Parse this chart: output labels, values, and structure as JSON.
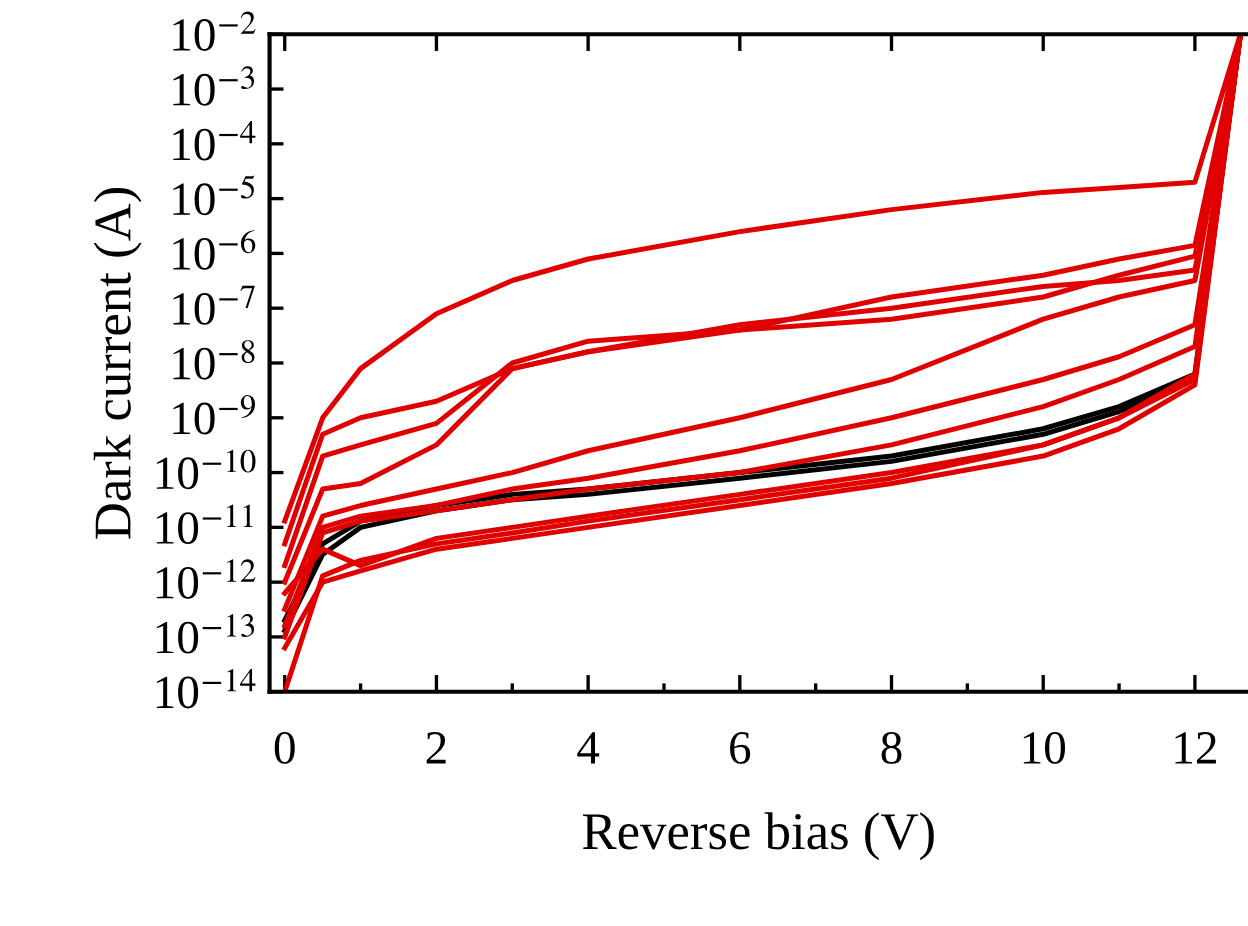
{
  "chart_data": {
    "type": "line",
    "xlabel": "Reverse bias (V)",
    "ylabel": "Dark current (A)",
    "log": "y",
    "xlim": [
      -0.2,
      12.7
    ],
    "ylim": [
      1e-14,
      0.01
    ],
    "xticks": [
      0,
      {
        "value": 1,
        "label": null
      },
      2,
      {
        "value": 3,
        "label": null
      },
      4,
      {
        "value": 5,
        "label": null
      },
      6,
      {
        "value": 7,
        "label": null
      },
      8,
      {
        "value": 9,
        "label": null
      },
      10,
      {
        "value": 11,
        "label": null
      },
      12
    ],
    "yticks": [
      {
        "value": 1e-14,
        "label": "10$^{−14}$"
      },
      {
        "value": 1e-13,
        "label": "10$^{−13}$"
      },
      {
        "value": 1e-12,
        "label": "10$^{−12}$"
      },
      {
        "value": 1e-11,
        "label": "10$^{−11}$"
      },
      {
        "value": 1e-10,
        "label": "10$^{−10}$"
      },
      {
        "value": 1e-09,
        "label": "10$^{−9}$"
      },
      {
        "value": 1e-08,
        "label": "10$^{−8}$"
      },
      {
        "value": 1e-07,
        "label": "10$^{−7}$"
      },
      {
        "value": 1e-06,
        "label": "10$^{−6}$"
      },
      {
        "value": 1e-05,
        "label": "10$^{−5}$"
      },
      {
        "value": 0.0001,
        "label": "10$^{−4}$"
      },
      {
        "value": 0.001,
        "label": "10$^{−3}$"
      },
      {
        "value": 0.01,
        "label": "10$^{−2}$"
      }
    ],
    "grid": false,
    "marker": "none",
    "line_style": "solid",
    "x": [
      0,
      0.5,
      1,
      2,
      3,
      4,
      6,
      8,
      10,
      11,
      12,
      12.6
    ],
    "series": [
      {
        "color": "#000000",
        "values": [
          2e-13,
          5e-12,
          1.3e-11,
          2.5e-11,
          4e-11,
          5e-11,
          1e-10,
          2e-10,
          6.3e-10,
          1.6e-09,
          6.3e-09,
          0.01
        ]
      },
      {
        "color": "#000000",
        "values": [
          1.3e-13,
          3.2e-12,
          1e-11,
          2e-11,
          3.2e-11,
          4e-11,
          7.9e-11,
          1.6e-10,
          5e-10,
          1.3e-09,
          5e-09,
          0.01
        ]
      },
      {
        "color": "#e00000",
        "values": [
          1.3e-11,
          1e-09,
          7.9e-09,
          7.9e-08,
          3.2e-07,
          7.9e-07,
          2.5e-06,
          6.3e-06,
          1.3e-05,
          1.6e-05,
          2e-05,
          0.01
        ]
      },
      {
        "color": "#e00000",
        "values": [
          5e-12,
          5e-10,
          1e-09,
          2e-09,
          7.9e-09,
          1.6e-08,
          4e-08,
          1.6e-07,
          4e-07,
          7.9e-07,
          1.4e-06,
          0.01
        ]
      },
      {
        "color": "#e00000",
        "values": [
          2e-12,
          2e-10,
          3.2e-10,
          7.9e-10,
          1e-08,
          2.5e-08,
          4e-08,
          6.3e-08,
          1.6e-07,
          4e-07,
          8.9e-07,
          0.01
        ]
      },
      {
        "color": "#e00000",
        "values": [
          1e-12,
          5e-11,
          6.3e-11,
          3.2e-10,
          7.9e-09,
          1.6e-08,
          5e-08,
          1e-07,
          2.5e-07,
          3.2e-07,
          5e-07,
          0.01
        ]
      },
      {
        "color": "#e00000",
        "values": [
          3.2e-13,
          1.6e-11,
          2.5e-11,
          5e-11,
          1e-10,
          2.5e-10,
          1e-09,
          5e-09,
          6.3e-08,
          1.6e-07,
          3.2e-07,
          0.01
        ]
      },
      {
        "color": "#e00000",
        "values": [
          1.6e-13,
          1e-11,
          1.6e-11,
          2.5e-11,
          5e-11,
          7.9e-11,
          2.5e-10,
          1e-09,
          5e-09,
          1.3e-08,
          5e-08,
          0.01
        ]
      },
      {
        "color": "#e00000",
        "values": [
          1e-13,
          7.9e-12,
          1.3e-11,
          2e-11,
          3.2e-11,
          5e-11,
          1e-10,
          3.2e-10,
          1.6e-09,
          5e-09,
          2e-08,
          0.01
        ]
      },
      {
        "color": "#e00000",
        "values": [
          1e-14,
          1.3e-12,
          2.5e-12,
          5e-12,
          7.9e-12,
          1.3e-11,
          3.2e-11,
          7.9e-11,
          3.2e-10,
          1e-09,
          5e-09,
          0.01
        ]
      },
      {
        "color": "#e00000",
        "values": [
          6.3e-14,
          1e-12,
          1.6e-12,
          4e-12,
          6.3e-12,
          1e-11,
          2.5e-11,
          6.3e-11,
          2e-10,
          6.3e-10,
          4e-09,
          0.01
        ]
      },
      {
        "color": "#e00000",
        "values": [
          6.3e-13,
          4e-12,
          2e-12,
          6.3e-12,
          1e-11,
          1.6e-11,
          4e-11,
          1e-10,
          3.2e-10,
          1e-09,
          6.3e-09,
          0.01
        ]
      }
    ]
  }
}
